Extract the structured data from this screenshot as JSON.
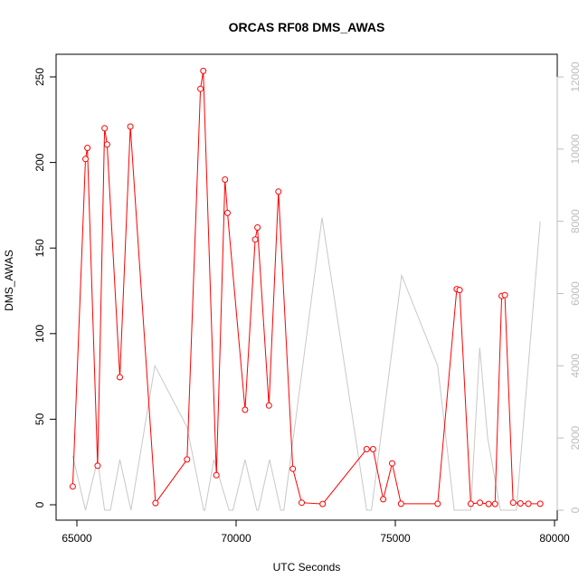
{
  "chart_data": {
    "type": "line",
    "title": "ORCAS RF08 DMS_AWAS",
    "xlabel": "UTC Seconds",
    "ylabel": "DMS_AWAS",
    "xlim": [
      64800,
      79800
    ],
    "ylim": [
      0,
      255
    ],
    "y2lim": [
      0,
      12300
    ],
    "xticks": [
      65000,
      70000,
      75000,
      80000
    ],
    "yticks": [
      0,
      50,
      100,
      150,
      200,
      250
    ],
    "y2ticks": [
      0,
      2000,
      4000,
      6000,
      8000,
      10000,
      12000
    ],
    "colors": {
      "primary": "#ff0000",
      "secondary": "#c8c8c8"
    },
    "series": [
      {
        "axis": "left",
        "style": "line+points",
        "x": [
          64870,
          65270,
          65330,
          65650,
          65870,
          65950,
          66350,
          66680,
          67470,
          68460,
          68880,
          68970,
          69380,
          69650,
          69730,
          70280,
          70600,
          70670,
          71030,
          71330,
          71780,
          72060,
          72720,
          74100,
          74300,
          74620,
          74900,
          75180,
          76330,
          76930,
          77020,
          77370,
          77660,
          77930,
          78130,
          78340,
          78440,
          78700,
          78930,
          79180,
          79550
        ],
        "y": [
          10.7,
          202,
          208.5,
          22.8,
          220,
          210.5,
          74.5,
          221,
          1.0,
          26.5,
          243,
          253.5,
          17.3,
          190,
          170.5,
          55.5,
          155,
          162,
          58,
          183,
          21,
          1.2,
          0.5,
          32.5,
          32.5,
          3.2,
          24.2,
          0.6,
          0.6,
          126,
          125.5,
          0.6,
          1.2,
          0.5,
          0.5,
          122,
          122.5,
          1.2,
          0.8,
          0.6,
          0.6
        ]
      },
      {
        "axis": "right",
        "style": "line",
        "x": [
          64870,
          65270,
          65650,
          65870,
          66050,
          66350,
          66700,
          67450,
          68460,
          68980,
          69020,
          69300,
          69780,
          69900,
          70280,
          70650,
          70700,
          71050,
          71400,
          71500,
          72700,
          74100,
          74250,
          75200,
          76330,
          76850,
          77020,
          77370,
          77650,
          77900,
          78300,
          78400,
          78700,
          78800,
          79550
        ],
        "y": [
          1500,
          0,
          1400,
          0,
          0,
          1400,
          0,
          4000,
          2300,
          0,
          0,
          1400,
          0,
          0,
          1400,
          0,
          0,
          1400,
          0,
          0,
          8100,
          0,
          0,
          6500,
          4000,
          0,
          0,
          0,
          4500,
          2000,
          0,
          0,
          0,
          0,
          8000
        ]
      }
    ]
  }
}
